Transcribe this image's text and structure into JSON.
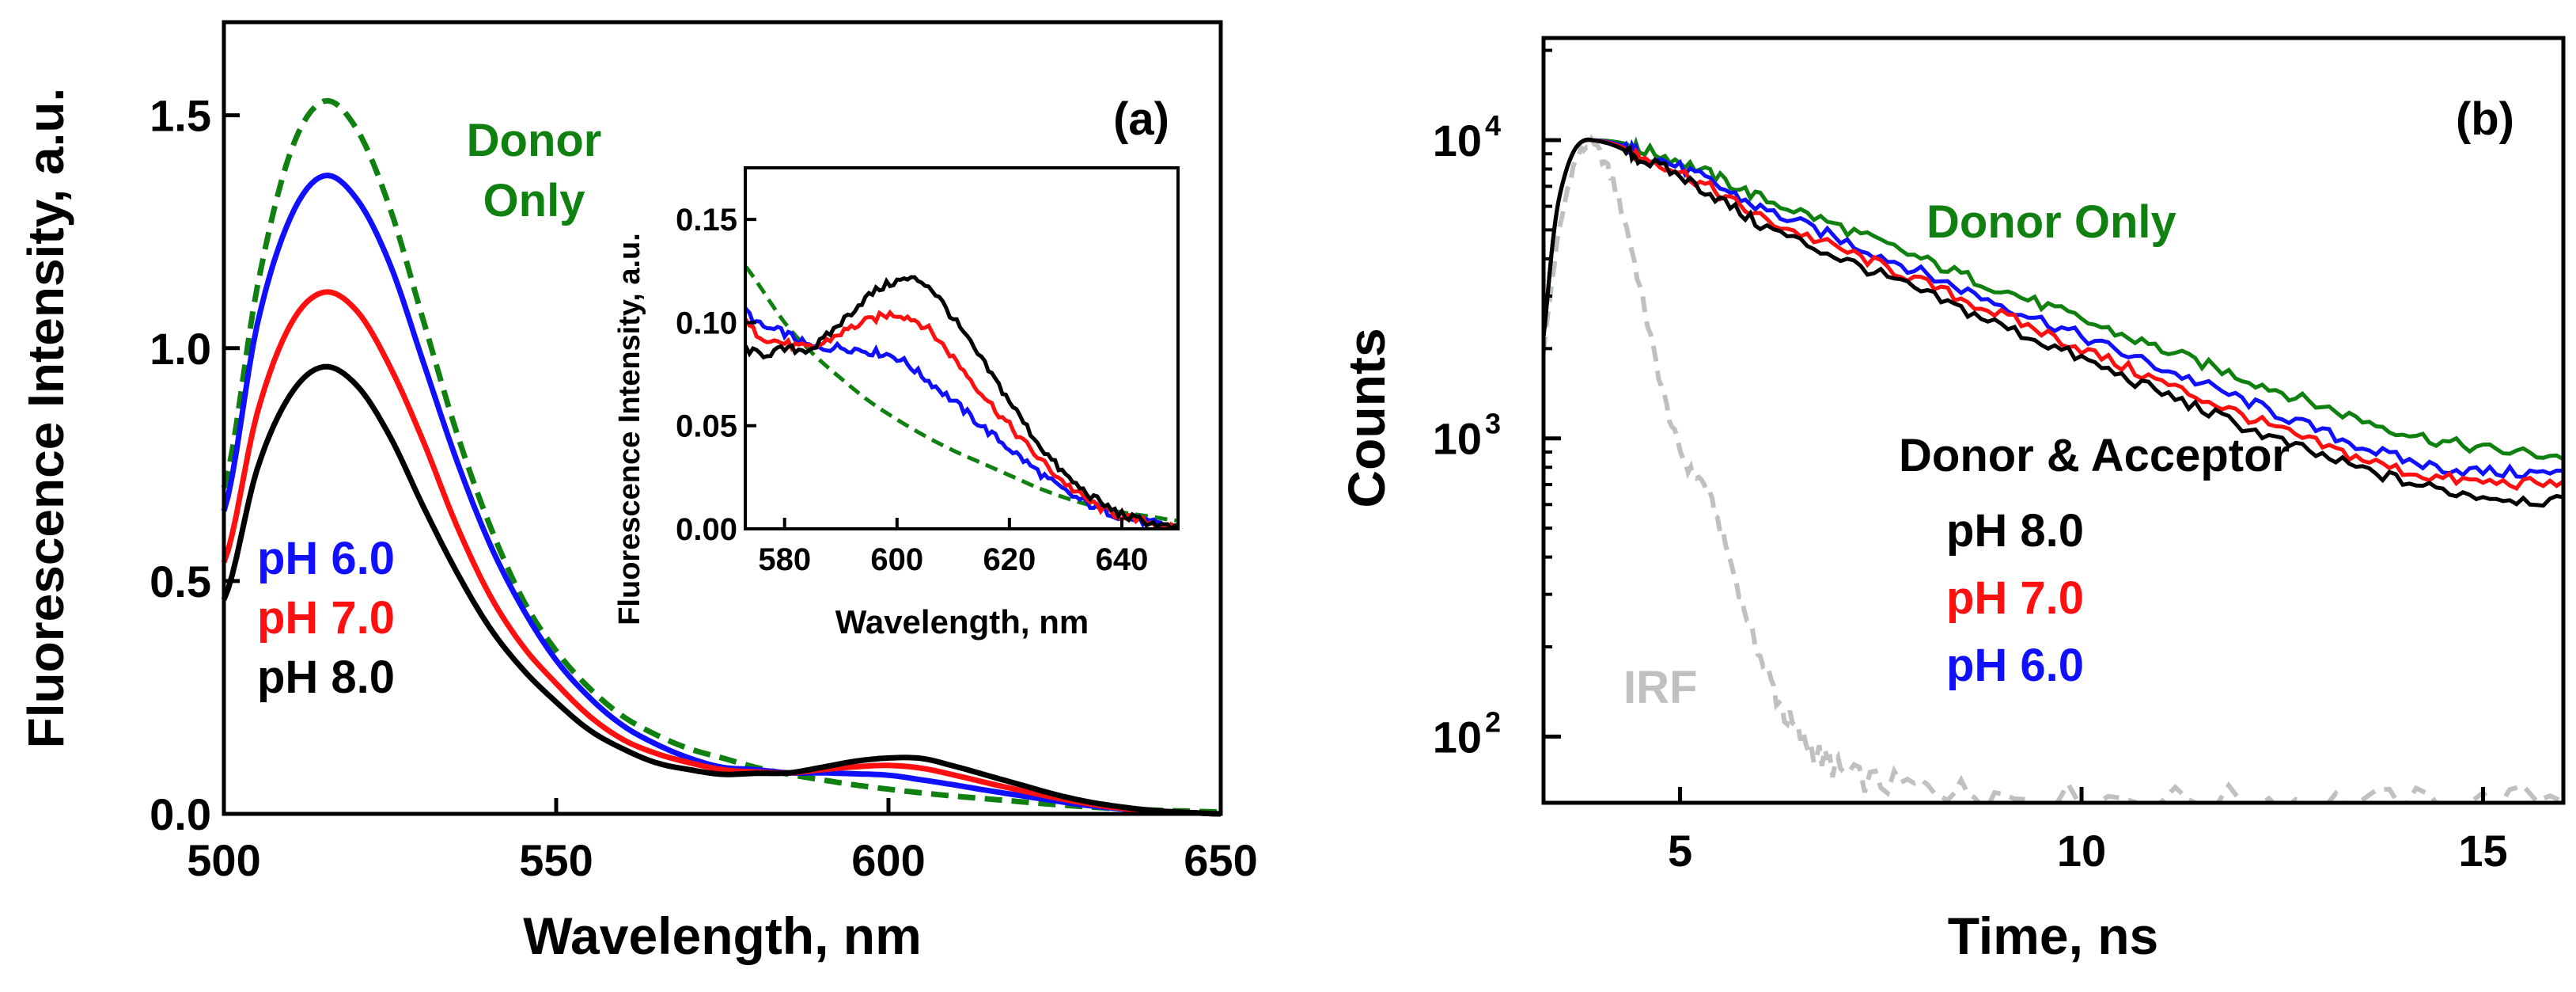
{
  "colors": {
    "blue": "#1010ff",
    "red": "#ff1010",
    "black": "#000000",
    "green": "#108010",
    "irf": "#c0c0c0"
  },
  "chart_data": [
    {
      "panel": "(a)",
      "type": "line",
      "xlabel": "Wavelength, nm",
      "ylabel": "Fluorescence Intensity, a.u.",
      "xlim": [
        500,
        650
      ],
      "ylim": [
        0,
        1.7
      ],
      "xticks": [
        500,
        550,
        600,
        650
      ],
      "yticks": [
        0.0,
        0.5,
        1.0,
        1.5
      ],
      "xtick_labels": [
        "500",
        "550",
        "600",
        "650"
      ],
      "ytick_labels": [
        "0.0",
        "0.5",
        "1.0",
        "1.5"
      ],
      "series": [
        {
          "name": "Donor Only",
          "style": "dashed",
          "color": "green",
          "x": [
            500,
            505,
            510,
            515,
            520,
            525,
            530,
            535,
            540,
            545,
            550,
            555,
            560,
            565,
            570,
            575,
            580,
            585,
            590,
            595,
            600,
            605,
            610,
            615,
            620,
            625,
            630,
            635,
            640,
            645,
            650
          ],
          "y": [
            0.7,
            1.13,
            1.42,
            1.53,
            1.47,
            1.3,
            1.06,
            0.82,
            0.62,
            0.46,
            0.35,
            0.27,
            0.21,
            0.17,
            0.14,
            0.12,
            0.1,
            0.085,
            0.073,
            0.062,
            0.053,
            0.045,
            0.038,
            0.032,
            0.026,
            0.02,
            0.015,
            0.011,
            0.008,
            0.006,
            0.004
          ]
        },
        {
          "name": "pH 6.0",
          "style": "solid",
          "color": "blue",
          "x": [
            500,
            505,
            510,
            515,
            520,
            525,
            530,
            535,
            540,
            545,
            550,
            555,
            560,
            565,
            570,
            575,
            580,
            585,
            590,
            595,
            600,
            605,
            610,
            615,
            620,
            625,
            630,
            635,
            640,
            645,
            650
          ],
          "y": [
            0.65,
            1.05,
            1.28,
            1.37,
            1.32,
            1.18,
            0.97,
            0.76,
            0.58,
            0.44,
            0.33,
            0.25,
            0.19,
            0.15,
            0.12,
            0.1,
            0.095,
            0.088,
            0.088,
            0.086,
            0.083,
            0.073,
            0.062,
            0.05,
            0.039,
            0.028,
            0.018,
            0.011,
            0.006,
            0.003,
            0.0
          ]
        },
        {
          "name": "pH 7.0",
          "style": "solid",
          "color": "red",
          "x": [
            500,
            505,
            510,
            515,
            520,
            525,
            530,
            535,
            540,
            545,
            550,
            555,
            560,
            565,
            570,
            575,
            580,
            585,
            590,
            595,
            600,
            605,
            610,
            615,
            620,
            625,
            630,
            635,
            640,
            645,
            650
          ],
          "y": [
            0.54,
            0.86,
            1.05,
            1.12,
            1.08,
            0.96,
            0.8,
            0.62,
            0.47,
            0.36,
            0.28,
            0.21,
            0.16,
            0.13,
            0.11,
            0.095,
            0.09,
            0.088,
            0.095,
            0.101,
            0.104,
            0.098,
            0.083,
            0.066,
            0.05,
            0.035,
            0.022,
            0.012,
            0.006,
            0.003,
            0.0
          ]
        },
        {
          "name": "pH 8.0",
          "style": "solid",
          "color": "black",
          "x": [
            500,
            505,
            510,
            515,
            520,
            525,
            530,
            535,
            540,
            545,
            550,
            555,
            560,
            565,
            570,
            575,
            580,
            585,
            590,
            595,
            600,
            605,
            610,
            615,
            620,
            625,
            630,
            635,
            640,
            645,
            650
          ],
          "y": [
            0.46,
            0.74,
            0.9,
            0.96,
            0.92,
            0.81,
            0.66,
            0.52,
            0.4,
            0.31,
            0.24,
            0.18,
            0.14,
            0.11,
            0.095,
            0.085,
            0.087,
            0.088,
            0.1,
            0.113,
            0.12,
            0.119,
            0.102,
            0.082,
            0.062,
            0.042,
            0.026,
            0.015,
            0.007,
            0.003,
            0.0
          ]
        }
      ],
      "labels": [
        {
          "text": "(a)",
          "color": "black"
        },
        {
          "text": "Donor",
          "color": "green"
        },
        {
          "text": "Only",
          "color": "green"
        },
        {
          "text": "pH 6.0",
          "color": "blue"
        },
        {
          "text": "pH 7.0",
          "color": "red"
        },
        {
          "text": "pH 8.0",
          "color": "black"
        }
      ],
      "inset": {
        "type": "line",
        "xlabel": "Wavelength, nm",
        "ylabel": "Fluorescence Intensity, a.u.",
        "xlim": [
          573,
          650
        ],
        "ylim": [
          0,
          0.175
        ],
        "xticks": [
          580,
          600,
          620,
          640
        ],
        "yticks": [
          0.0,
          0.05,
          0.1,
          0.15
        ],
        "xtick_labels": [
          "580",
          "600",
          "620",
          "640"
        ],
        "ytick_labels": [
          "0.00",
          "0.05",
          "0.10",
          "0.15"
        ]
      }
    },
    {
      "panel": "(b)",
      "type": "line",
      "xlabel": "Time, ns",
      "ylabel": "Counts",
      "yscale": "log",
      "xlim": [
        3.3,
        16
      ],
      "ylim": [
        60,
        22000
      ],
      "xticks": [
        5,
        10,
        15
      ],
      "xtick_labels": [
        "5",
        "10",
        "15"
      ],
      "yticks": [
        100,
        1000,
        10000
      ],
      "ytick_base": "10",
      "ytick_exponents": [
        "2",
        "3",
        "4"
      ],
      "series": [
        {
          "name": "IRF",
          "style": "dashed",
          "color": "irf",
          "x": [
            3.3,
            3.5,
            3.7,
            3.9,
            4.1,
            4.3,
            4.5,
            4.7,
            4.9,
            5.1,
            5.3,
            5.5,
            5.7,
            5.9,
            6.1,
            6.3,
            6.5,
            6.7,
            6.9,
            7.1,
            7.5,
            8,
            8.5,
            9,
            10,
            11,
            12,
            13,
            14,
            15,
            16
          ],
          "y": [
            2000,
            5000,
            8500,
            9600,
            8000,
            5500,
            3200,
            1800,
            1100,
            800,
            700,
            500,
            330,
            220,
            160,
            120,
            100,
            88,
            80,
            74,
            70,
            68,
            66,
            64,
            63,
            62,
            62,
            61,
            61,
            61,
            64
          ]
        },
        {
          "name": "Donor Only",
          "style": "solid",
          "color": "green",
          "x": [
            3.3,
            3.5,
            3.7,
            3.9,
            4.5,
            6,
            8,
            10,
            12,
            14,
            16
          ],
          "y": [
            2200,
            6500,
            9400,
            10000,
            9300,
            6400,
            4000,
            2500,
            1600,
            1050,
            870
          ]
        },
        {
          "name": "pH 6.0",
          "style": "solid",
          "color": "blue",
          "x": [
            3.3,
            3.5,
            3.7,
            3.9,
            4.5,
            6,
            8,
            10,
            12,
            14,
            16
          ],
          "y": [
            2200,
            6500,
            9400,
            10000,
            9000,
            5900,
            3600,
            2200,
            1350,
            850,
            760
          ]
        },
        {
          "name": "pH 7.0",
          "style": "solid",
          "color": "red",
          "x": [
            3.3,
            3.5,
            3.7,
            3.9,
            4.5,
            6,
            8,
            10,
            12,
            14,
            16
          ],
          "y": [
            2200,
            6500,
            9400,
            10000,
            8800,
            5500,
            3350,
            2000,
            1200,
            780,
            700
          ]
        },
        {
          "name": "pH 8.0",
          "style": "solid",
          "color": "black",
          "x": [
            3.3,
            3.5,
            3.7,
            3.9,
            4.5,
            6,
            8,
            10,
            12,
            14,
            16
          ],
          "y": [
            2200,
            6500,
            9400,
            10000,
            8600,
            5200,
            3100,
            1850,
            1100,
            720,
            610
          ]
        }
      ],
      "labels": [
        {
          "text": "(b)",
          "color": "black"
        },
        {
          "text": "Donor Only",
          "color": "green"
        },
        {
          "text": "Donor & Acceptor",
          "color": "black"
        },
        {
          "text": "pH 8.0",
          "color": "black"
        },
        {
          "text": "pH 7.0",
          "color": "red"
        },
        {
          "text": "pH 6.0",
          "color": "blue"
        },
        {
          "text": "IRF",
          "color": "irf"
        }
      ]
    }
  ]
}
